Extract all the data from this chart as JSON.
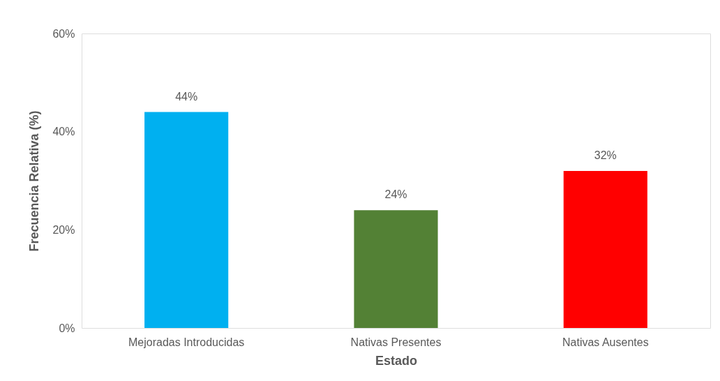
{
  "chart_data": {
    "type": "bar",
    "xlabel": "Estado",
    "ylabel": "Frecuencia Relativa (%)",
    "categories": [
      "Mejoradas Introducidas",
      "Nativas Presentes",
      "Nativas Ausentes"
    ],
    "values": [
      44,
      24,
      32
    ],
    "colors": [
      "#00b0f0",
      "#538135",
      "#ff0000"
    ],
    "value_labels": [
      "44%",
      "24%",
      "32%"
    ],
    "ylim": [
      0,
      60
    ],
    "yticks": [
      {
        "value": 0,
        "label": "0%"
      },
      {
        "value": 20,
        "label": "20%"
      },
      {
        "value": 40,
        "label": "40%"
      },
      {
        "value": 60,
        "label": "60%"
      }
    ],
    "grid": false,
    "legend": false
  }
}
